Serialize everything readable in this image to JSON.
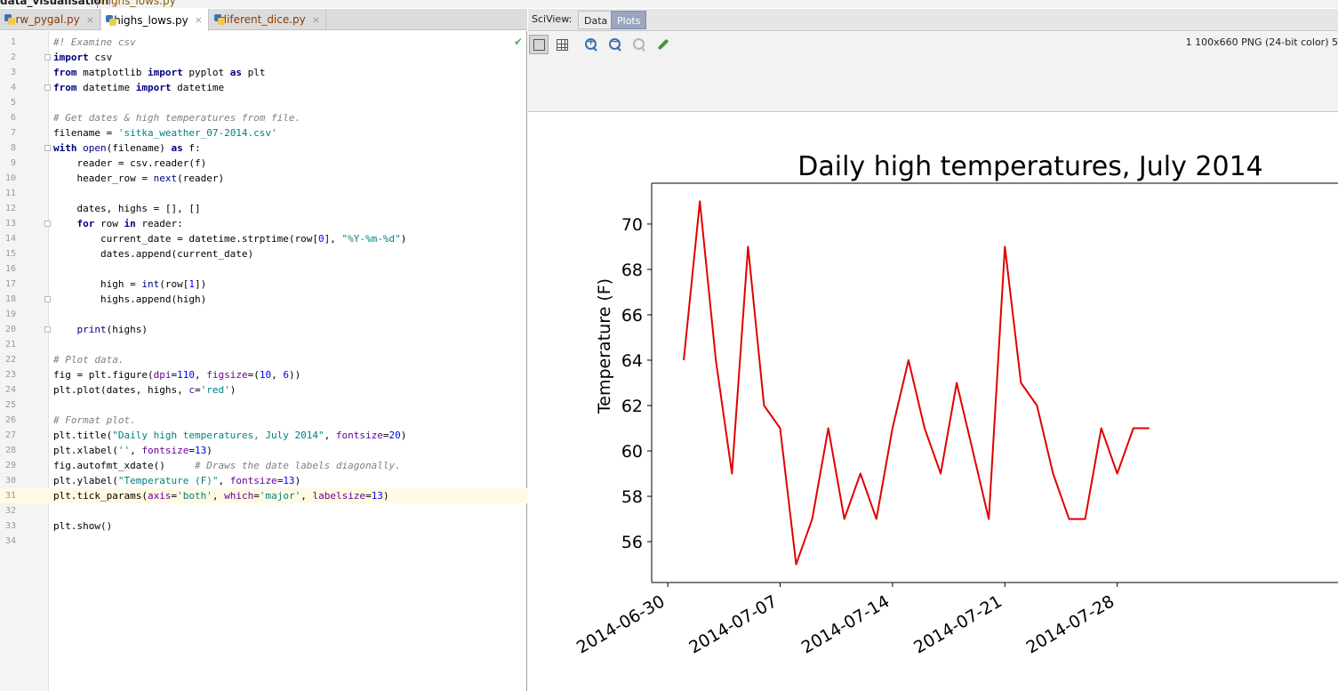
{
  "breadcrumb": {
    "project": "data_visualisation",
    "file": "highs_lows.py"
  },
  "tabs": [
    {
      "label": "rw_pygal.py",
      "close": "×"
    },
    {
      "label": "highs_lows.py",
      "close": "×"
    },
    {
      "label": "diferent_dice.py",
      "close": "×"
    }
  ],
  "sciview": {
    "label": "SciView:",
    "tabs": {
      "data": "Data",
      "plots": "Plots"
    },
    "image_info": "1 100x660 PNG (24-bit color) 5"
  },
  "editor": {
    "lines": [
      {
        "n": "1",
        "html": "<span class=\"cm\">#! Examine csv</span>"
      },
      {
        "n": "2",
        "html": "<span class=\"kw\">import</span> csv",
        "fold": true
      },
      {
        "n": "3",
        "html": "<span class=\"kw\">from</span> matplotlib <span class=\"kw\">import</span> pyplot <span class=\"kw\">as</span> plt"
      },
      {
        "n": "4",
        "html": "<span class=\"kw\">from</span> datetime <span class=\"kw\">import</span> datetime",
        "fold": true
      },
      {
        "n": "5",
        "html": ""
      },
      {
        "n": "6",
        "html": "<span class=\"cm\"># Get dates &amp; high temperatures from file.</span>"
      },
      {
        "n": "7",
        "html": "filename = <span class=\"str\">'sitka_weather_07-2014.csv'</span>"
      },
      {
        "n": "8",
        "html": "<span class=\"kw\">with</span> <span class=\"builtin\">open</span>(filename) <span class=\"kw\">as</span> f:",
        "fold": true
      },
      {
        "n": "9",
        "html": "    reader = csv.reader(f)"
      },
      {
        "n": "10",
        "html": "    header_row = <span class=\"builtin\">next</span>(reader)"
      },
      {
        "n": "11",
        "html": ""
      },
      {
        "n": "12",
        "html": "    dates, highs = [], []"
      },
      {
        "n": "13",
        "html": "    <span class=\"kw\">for</span> row <span class=\"kw\">in</span> reader:",
        "fold": true
      },
      {
        "n": "14",
        "html": "        current_date = datetime.strptime(row[<span class=\"num\">0</span>], <span class=\"str\">\"%Y-%m-%d\"</span>)"
      },
      {
        "n": "15",
        "html": "        dates.append(current_date)"
      },
      {
        "n": "16",
        "html": ""
      },
      {
        "n": "17",
        "html": "        high = <span class=\"builtin\">int</span>(row[<span class=\"num\">1</span>])"
      },
      {
        "n": "18",
        "html": "        highs.append(high)",
        "fold": true
      },
      {
        "n": "19",
        "html": ""
      },
      {
        "n": "20",
        "html": "    <span class=\"builtin\">print</span>(highs)",
        "fold": true
      },
      {
        "n": "21",
        "html": ""
      },
      {
        "n": "22",
        "html": "<span class=\"cm\"># Plot data.</span>"
      },
      {
        "n": "23",
        "html": "fig = plt.figure(<span class=\"kwa\">dpi</span>=<span class=\"num\">110</span>, <span class=\"kwa\">figsize</span>=(<span class=\"num\">10</span>, <span class=\"num\">6</span>))"
      },
      {
        "n": "24",
        "html": "plt.plot(dates, highs, <span class=\"kwa\">c</span>=<span class=\"str\">'red'</span>)"
      },
      {
        "n": "25",
        "html": ""
      },
      {
        "n": "26",
        "html": "<span class=\"cm\"># Format plot.</span>"
      },
      {
        "n": "27",
        "html": "plt.title(<span class=\"str\">\"Daily high temperatures, July 2014\"</span>, <span class=\"kwa\">fontsize</span>=<span class=\"num\">20</span>)"
      },
      {
        "n": "28",
        "html": "plt.xlabel(<span class=\"str\">''</span>, <span class=\"kwa\">fontsize</span>=<span class=\"num\">13</span>)"
      },
      {
        "n": "29",
        "html": "fig.autofmt_xdate()     <span class=\"cm\"># Draws the date labels diagonally.</span>"
      },
      {
        "n": "30",
        "html": "plt.ylabel(<span class=\"str\">\"Temperature (F)\"</span>, <span class=\"kwa\">fontsize</span>=<span class=\"num\">13</span>)"
      },
      {
        "n": "31",
        "html": "plt.tick_params(<span class=\"kwa\">axis</span>=<span class=\"str\">'both'</span>, <span class=\"kwa\">which</span>=<span class=\"str\">'major'</span>, <span class=\"kwa\">labelsize</span>=<span class=\"num\">13</span>)",
        "current": true
      },
      {
        "n": "32",
        "html": ""
      },
      {
        "n": "33",
        "html": "plt.show()"
      },
      {
        "n": "34",
        "html": ""
      }
    ]
  },
  "chart_data": {
    "type": "line",
    "title": "Daily high temperatures, July 2014",
    "xlabel": "",
    "ylabel": "Temperature (F)",
    "color": "#e00000",
    "x": [
      "2014-07-01",
      "2014-07-02",
      "2014-07-03",
      "2014-07-04",
      "2014-07-05",
      "2014-07-06",
      "2014-07-07",
      "2014-07-08",
      "2014-07-09",
      "2014-07-10",
      "2014-07-11",
      "2014-07-12",
      "2014-07-13",
      "2014-07-14",
      "2014-07-15",
      "2014-07-16",
      "2014-07-17",
      "2014-07-18",
      "2014-07-19",
      "2014-07-20",
      "2014-07-21",
      "2014-07-22",
      "2014-07-23",
      "2014-07-24",
      "2014-07-25",
      "2014-07-26",
      "2014-07-27",
      "2014-07-28",
      "2014-07-29",
      "2014-07-30"
    ],
    "values": [
      64,
      71,
      64,
      59,
      69,
      62,
      61,
      55,
      57,
      61,
      57,
      59,
      57,
      61,
      64,
      61,
      59,
      63,
      60,
      57,
      69,
      63,
      62,
      59,
      57,
      57,
      61,
      59,
      61,
      61
    ],
    "x_ticks": [
      "2014-06-30",
      "2014-07-07",
      "2014-07-14",
      "2014-07-21",
      "2014-07-28"
    ],
    "y_ticks": [
      56,
      58,
      60,
      62,
      64,
      66,
      68,
      70
    ],
    "xlim": [
      "2014-06-29",
      "2014-07-30"
    ],
    "ylim": [
      54.2,
      71.8
    ],
    "grid": false
  }
}
